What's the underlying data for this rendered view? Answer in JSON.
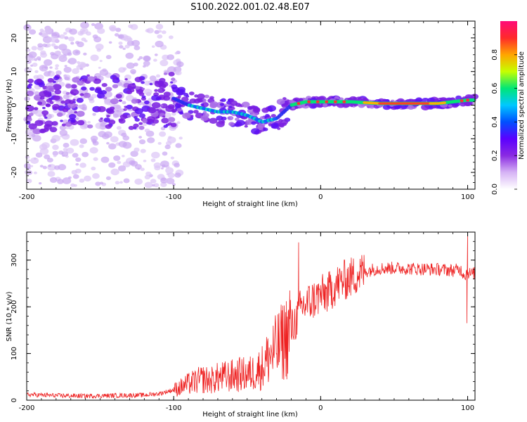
{
  "title": "S100.2022.001.02.48.E07",
  "chart_data": [
    {
      "type": "heatmap",
      "xlabel": "Height of straight line (km)",
      "ylabel": "Frequency (Hz)",
      "xlim": [
        -200,
        105
      ],
      "ylim": [
        -25,
        25
      ],
      "x_ticks": [
        -200,
        -100,
        0,
        100
      ],
      "y_ticks": [
        -20,
        -10,
        0,
        10,
        20
      ],
      "colorbar": {
        "label": "Normalized spectral amplitude",
        "range": [
          0,
          1
        ],
        "ticks": [
          0.0,
          0.2,
          0.4,
          0.6,
          0.8
        ],
        "colors": [
          "#ffffff",
          "#d6b3f5",
          "#8a2be2",
          "#5b00ff",
          "#0050ff",
          "#00c8ff",
          "#00e676",
          "#c6ff00",
          "#ffa500",
          "#ff2a2a",
          "#ff0a78"
        ]
      },
      "ridge": {
        "description_points_x": [
          -200,
          -180,
          -150,
          -120,
          -100,
          -90,
          -80,
          -70,
          -60,
          -50,
          -40,
          -30,
          -20,
          -10,
          0,
          20,
          40,
          60,
          80,
          100,
          105
        ],
        "description_points_y": [
          0,
          0.5,
          1,
          0.5,
          2,
          0,
          -1,
          -2,
          -2,
          -3,
          -5,
          -4,
          0,
          1,
          1,
          1,
          0.5,
          0.5,
          0.5,
          1.5,
          1.5
        ]
      }
    },
    {
      "type": "line",
      "xlabel": "Height of straight line (km)",
      "ylabel": "SNR (10 * v/v)",
      "xlim": [
        -200,
        105
      ],
      "ylim": [
        0,
        360
      ],
      "x_ticks": [
        -200,
        -100,
        0,
        100
      ],
      "y_ticks": [
        0,
        100,
        200,
        300
      ],
      "series": [
        {
          "color": "#ee2222",
          "x": [
            -200,
            -180,
            -160,
            -140,
            -120,
            -110,
            -100,
            -95,
            -90,
            -85,
            -80,
            -75,
            -70,
            -65,
            -60,
            -55,
            -50,
            -45,
            -40,
            -35,
            -30,
            -25,
            -20,
            -17,
            -15,
            -13,
            -10,
            -5,
            0,
            5,
            10,
            15,
            20,
            25,
            30,
            35,
            40,
            50,
            60,
            70,
            80,
            90,
            95,
            98,
            100,
            102,
            105
          ],
          "values": [
            12,
            10,
            9,
            10,
            11,
            14,
            22,
            28,
            35,
            40,
            45,
            42,
            48,
            50,
            52,
            55,
            55,
            60,
            70,
            95,
            110,
            130,
            150,
            170,
            185,
            200,
            205,
            215,
            225,
            230,
            245,
            255,
            262,
            270,
            275,
            280,
            282,
            283,
            282,
            281,
            280,
            278,
            280,
            268,
            275,
            270,
            272
          ]
        }
      ],
      "spikes": [
        {
          "x": -15,
          "value": 338
        },
        {
          "x": -21,
          "value": 235
        },
        {
          "x": 100,
          "value": 357
        },
        {
          "x": 99.5,
          "value": 165
        }
      ]
    }
  ]
}
